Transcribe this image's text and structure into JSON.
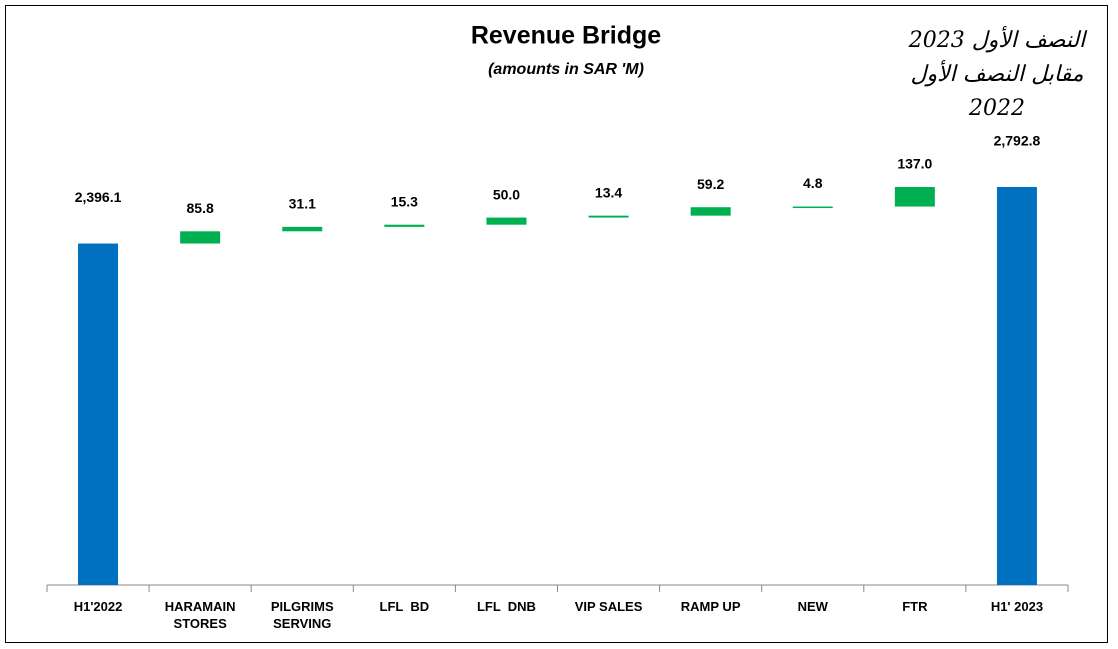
{
  "chart_data": {
    "type": "waterfall",
    "title": "Revenue Bridge",
    "subtitle": "(amounts in SAR 'M)",
    "annotation": [
      "النصف الأول 2023",
      "مقابل النصف الأول",
      "2022"
    ],
    "categories": [
      "H1'2022",
      "HARAMAIN STORES",
      "PILGRIMS SERVING",
      "LFL  BD",
      "LFL  DNB",
      "VIP SALES",
      "RAMP UP",
      "NEW",
      "FTR",
      "H1' 2023"
    ],
    "values": [
      2396.1,
      85.8,
      31.1,
      15.3,
      50.0,
      13.4,
      59.2,
      4.8,
      137.0,
      2792.8
    ],
    "value_labels": [
      "2,396.1",
      "85.8",
      "31.1",
      "15.3",
      "50.0",
      "13.4",
      "59.2",
      "4.8",
      "137.0",
      "2,792.8"
    ],
    "total_color": "#0070c0",
    "increase_color": "#00b050"
  }
}
